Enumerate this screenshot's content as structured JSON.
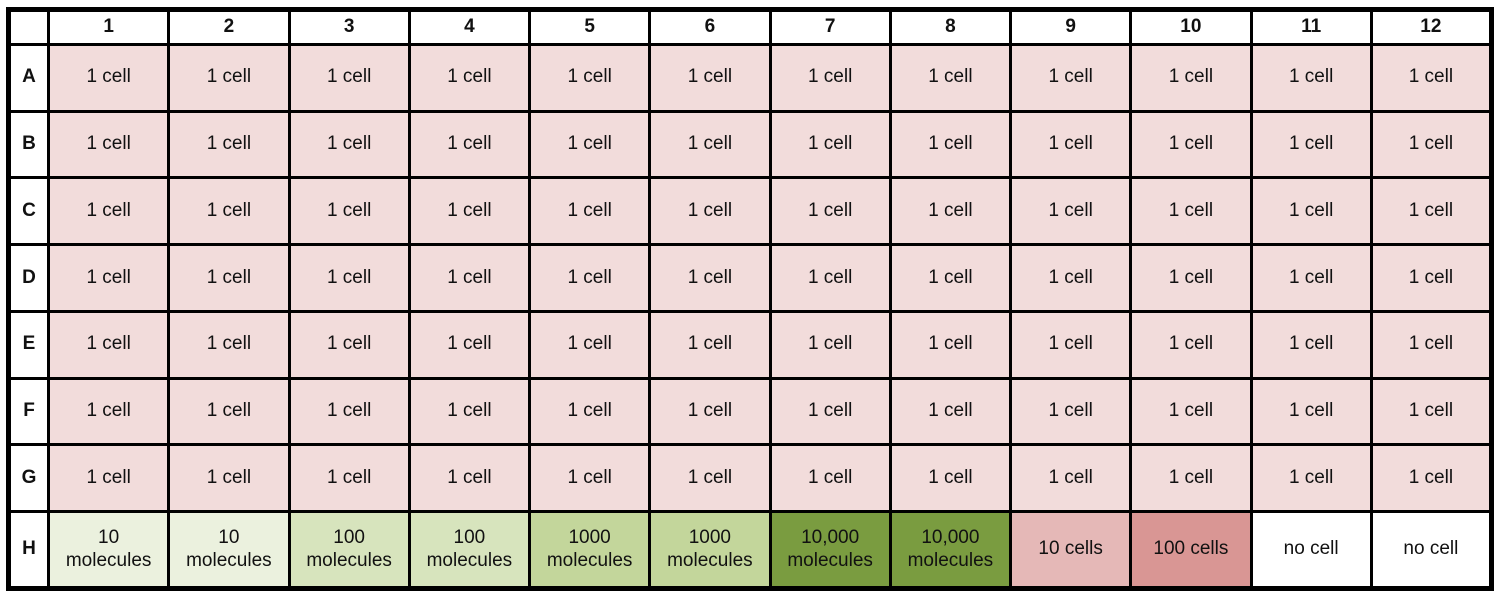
{
  "chart_data": {
    "type": "table",
    "corner_label": "",
    "columns": [
      "1",
      "2",
      "3",
      "4",
      "5",
      "6",
      "7",
      "8",
      "9",
      "10",
      "11",
      "12"
    ],
    "rows": [
      {
        "label": "A",
        "cells": [
          {
            "text": "1 cell",
            "color": "#f2dcdb"
          },
          {
            "text": "1 cell",
            "color": "#f2dcdb"
          },
          {
            "text": "1 cell",
            "color": "#f2dcdb"
          },
          {
            "text": "1 cell",
            "color": "#f2dcdb"
          },
          {
            "text": "1 cell",
            "color": "#f2dcdb"
          },
          {
            "text": "1 cell",
            "color": "#f2dcdb"
          },
          {
            "text": "1 cell",
            "color": "#f2dcdb"
          },
          {
            "text": "1 cell",
            "color": "#f2dcdb"
          },
          {
            "text": "1 cell",
            "color": "#f2dcdb"
          },
          {
            "text": "1 cell",
            "color": "#f2dcdb"
          },
          {
            "text": "1 cell",
            "color": "#f2dcdb"
          },
          {
            "text": "1 cell",
            "color": "#f2dcdb"
          }
        ]
      },
      {
        "label": "B",
        "cells": [
          {
            "text": "1 cell",
            "color": "#f2dcdb"
          },
          {
            "text": "1 cell",
            "color": "#f2dcdb"
          },
          {
            "text": "1 cell",
            "color": "#f2dcdb"
          },
          {
            "text": "1 cell",
            "color": "#f2dcdb"
          },
          {
            "text": "1 cell",
            "color": "#f2dcdb"
          },
          {
            "text": "1 cell",
            "color": "#f2dcdb"
          },
          {
            "text": "1 cell",
            "color": "#f2dcdb"
          },
          {
            "text": "1 cell",
            "color": "#f2dcdb"
          },
          {
            "text": "1 cell",
            "color": "#f2dcdb"
          },
          {
            "text": "1 cell",
            "color": "#f2dcdb"
          },
          {
            "text": "1 cell",
            "color": "#f2dcdb"
          },
          {
            "text": "1 cell",
            "color": "#f2dcdb"
          }
        ]
      },
      {
        "label": "C",
        "cells": [
          {
            "text": "1 cell",
            "color": "#f2dcdb"
          },
          {
            "text": "1 cell",
            "color": "#f2dcdb"
          },
          {
            "text": "1 cell",
            "color": "#f2dcdb"
          },
          {
            "text": "1 cell",
            "color": "#f2dcdb"
          },
          {
            "text": "1 cell",
            "color": "#f2dcdb"
          },
          {
            "text": "1 cell",
            "color": "#f2dcdb"
          },
          {
            "text": "1 cell",
            "color": "#f2dcdb"
          },
          {
            "text": "1 cell",
            "color": "#f2dcdb"
          },
          {
            "text": "1 cell",
            "color": "#f2dcdb"
          },
          {
            "text": "1 cell",
            "color": "#f2dcdb"
          },
          {
            "text": "1 cell",
            "color": "#f2dcdb"
          },
          {
            "text": "1 cell",
            "color": "#f2dcdb"
          }
        ]
      },
      {
        "label": "D",
        "cells": [
          {
            "text": "1 cell",
            "color": "#f2dcdb"
          },
          {
            "text": "1 cell",
            "color": "#f2dcdb"
          },
          {
            "text": "1 cell",
            "color": "#f2dcdb"
          },
          {
            "text": "1 cell",
            "color": "#f2dcdb"
          },
          {
            "text": "1 cell",
            "color": "#f2dcdb"
          },
          {
            "text": "1 cell",
            "color": "#f2dcdb"
          },
          {
            "text": "1 cell",
            "color": "#f2dcdb"
          },
          {
            "text": "1 cell",
            "color": "#f2dcdb"
          },
          {
            "text": "1 cell",
            "color": "#f2dcdb"
          },
          {
            "text": "1 cell",
            "color": "#f2dcdb"
          },
          {
            "text": "1 cell",
            "color": "#f2dcdb"
          },
          {
            "text": "1 cell",
            "color": "#f2dcdb"
          }
        ]
      },
      {
        "label": "E",
        "cells": [
          {
            "text": "1 cell",
            "color": "#f2dcdb"
          },
          {
            "text": "1 cell",
            "color": "#f2dcdb"
          },
          {
            "text": "1 cell",
            "color": "#f2dcdb"
          },
          {
            "text": "1 cell",
            "color": "#f2dcdb"
          },
          {
            "text": "1 cell",
            "color": "#f2dcdb"
          },
          {
            "text": "1 cell",
            "color": "#f2dcdb"
          },
          {
            "text": "1 cell",
            "color": "#f2dcdb"
          },
          {
            "text": "1 cell",
            "color": "#f2dcdb"
          },
          {
            "text": "1 cell",
            "color": "#f2dcdb"
          },
          {
            "text": "1 cell",
            "color": "#f2dcdb"
          },
          {
            "text": "1 cell",
            "color": "#f2dcdb"
          },
          {
            "text": "1 cell",
            "color": "#f2dcdb"
          }
        ]
      },
      {
        "label": "F",
        "cells": [
          {
            "text": "1 cell",
            "color": "#f2dcdb"
          },
          {
            "text": "1 cell",
            "color": "#f2dcdb"
          },
          {
            "text": "1 cell",
            "color": "#f2dcdb"
          },
          {
            "text": "1 cell",
            "color": "#f2dcdb"
          },
          {
            "text": "1 cell",
            "color": "#f2dcdb"
          },
          {
            "text": "1 cell",
            "color": "#f2dcdb"
          },
          {
            "text": "1 cell",
            "color": "#f2dcdb"
          },
          {
            "text": "1 cell",
            "color": "#f2dcdb"
          },
          {
            "text": "1 cell",
            "color": "#f2dcdb"
          },
          {
            "text": "1 cell",
            "color": "#f2dcdb"
          },
          {
            "text": "1 cell",
            "color": "#f2dcdb"
          },
          {
            "text": "1 cell",
            "color": "#f2dcdb"
          }
        ]
      },
      {
        "label": "G",
        "cells": [
          {
            "text": "1 cell",
            "color": "#f2dcdb"
          },
          {
            "text": "1 cell",
            "color": "#f2dcdb"
          },
          {
            "text": "1 cell",
            "color": "#f2dcdb"
          },
          {
            "text": "1 cell",
            "color": "#f2dcdb"
          },
          {
            "text": "1 cell",
            "color": "#f2dcdb"
          },
          {
            "text": "1 cell",
            "color": "#f2dcdb"
          },
          {
            "text": "1 cell",
            "color": "#f2dcdb"
          },
          {
            "text": "1 cell",
            "color": "#f2dcdb"
          },
          {
            "text": "1 cell",
            "color": "#f2dcdb"
          },
          {
            "text": "1 cell",
            "color": "#f2dcdb"
          },
          {
            "text": "1 cell",
            "color": "#f2dcdb"
          },
          {
            "text": "1 cell",
            "color": "#f2dcdb"
          }
        ]
      },
      {
        "label": "H",
        "cells": [
          {
            "text": "10\nmolecules",
            "color": "#ebf1de"
          },
          {
            "text": "10\nmolecules",
            "color": "#ebf1de"
          },
          {
            "text": "100\nmolecules",
            "color": "#d7e4bd"
          },
          {
            "text": "100\nmolecules",
            "color": "#d7e4bd"
          },
          {
            "text": "1000\nmolecules",
            "color": "#c3d69b"
          },
          {
            "text": "1000\nmolecules",
            "color": "#c3d69b"
          },
          {
            "text": "10,000\nmolecules",
            "color": "#7a9c40"
          },
          {
            "text": "10,000\nmolecules",
            "color": "#7a9c40"
          },
          {
            "text": "10 cells",
            "color": "#e5b8b7"
          },
          {
            "text": "100 cells",
            "color": "#d99694"
          },
          {
            "text": "no cell",
            "color": "#ffffff"
          },
          {
            "text": "no cell",
            "color": "#ffffff"
          }
        ]
      }
    ]
  },
  "colors": {
    "border": "#000000",
    "header_bg": "#ffffff",
    "text": "#111111",
    "one_cell": "#f2dcdb",
    "molecules_10": "#ebf1de",
    "molecules_100": "#d7e4bd",
    "molecules_1000": "#c3d69b",
    "molecules_10000": "#7a9c40",
    "cells_10": "#e5b8b7",
    "cells_100": "#d99694",
    "no_cell": "#ffffff"
  }
}
